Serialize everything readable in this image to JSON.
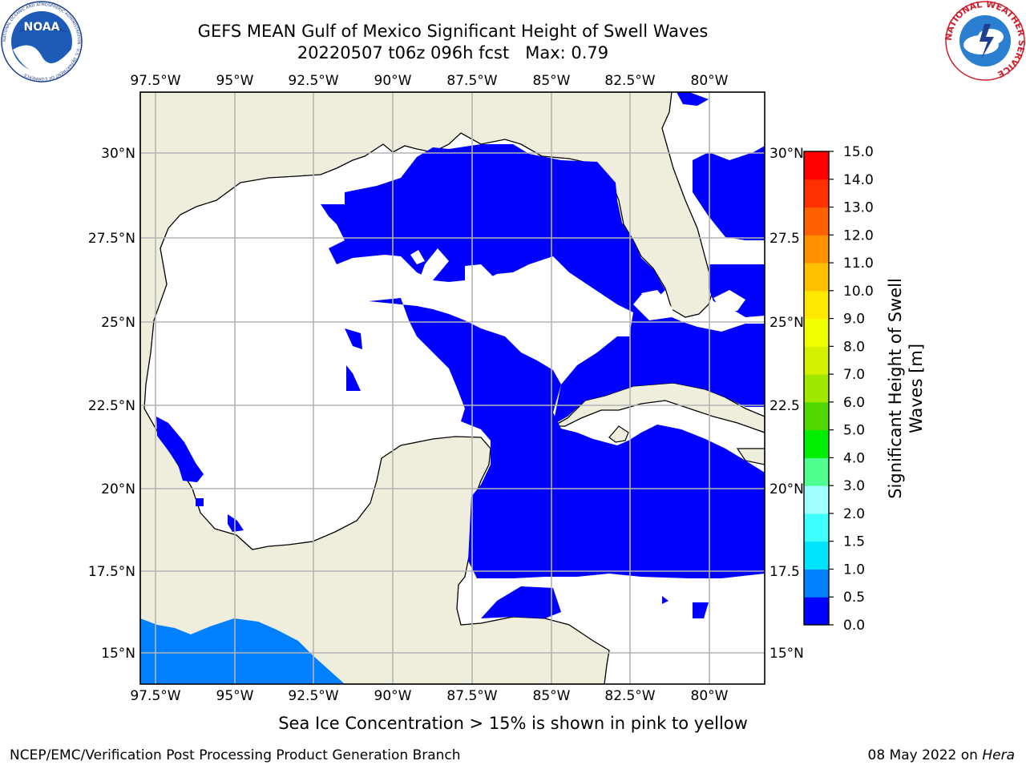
{
  "title": {
    "line1": "GEFS MEAN Gulf of Mexico Significant Height of Swell Waves",
    "line2": "20220507 t06z 096h fcst   Max: 0.79"
  },
  "map": {
    "lon_ticks": [
      "97.5°W",
      "95°W",
      "92.5°W",
      "90°W",
      "87.5°W",
      "85°W",
      "82.5°W",
      "80°W"
    ],
    "lat_ticks_left": [
      "30°N",
      "27.5°N",
      "25°N",
      "22.5°N",
      "20°N",
      "17.5°N",
      "15°N"
    ],
    "lat_ticks_right": [
      "30°N",
      "27.5",
      "25°N",
      "22.5",
      "20°N",
      "17.5",
      "15°N"
    ],
    "land_color": "#efeedd",
    "ocean_color": "#ffffff",
    "grid_color": "#b4b4b4"
  },
  "colorbar": {
    "label_line1": "Significant Height of Swell",
    "label_line2": "Waves [m]",
    "ticks": [
      "0.0",
      "0.5",
      "1.0",
      "1.5",
      "2.0",
      "3.0",
      "4.0",
      "5.0",
      "6.0",
      "7.0",
      "8.0",
      "9.0",
      "10.0",
      "11.0",
      "12.0",
      "13.0",
      "14.0",
      "15.0"
    ],
    "colors": [
      "#0000ff",
      "#0080ff",
      "#00e4ff",
      "#40ffff",
      "#a0ffff",
      "#50ff90",
      "#00ef00",
      "#50d800",
      "#a0e800",
      "#d2f000",
      "#f0ff00",
      "#ffe800",
      "#ffc000",
      "#ff9000",
      "#ff6000",
      "#ff3000",
      "#ff0000"
    ]
  },
  "subtitle": "Sea Ice Concentration > 15% is shown in pink to yellow",
  "footer": {
    "left": "NCEP/EMC/Verification Post Processing Product Generation Branch",
    "right_date": "08 May 2022 on ",
    "right_host": "Hera"
  },
  "logos": {
    "noaa": "NOAA",
    "noaa_ring": "NATIONAL OCEANIC AND ATMOSPHERIC ADMINISTRATION · U.S. DEPARTMENT OF COMMERCE",
    "nws_ring": "NATIONAL WEATHER SERVICE"
  }
}
